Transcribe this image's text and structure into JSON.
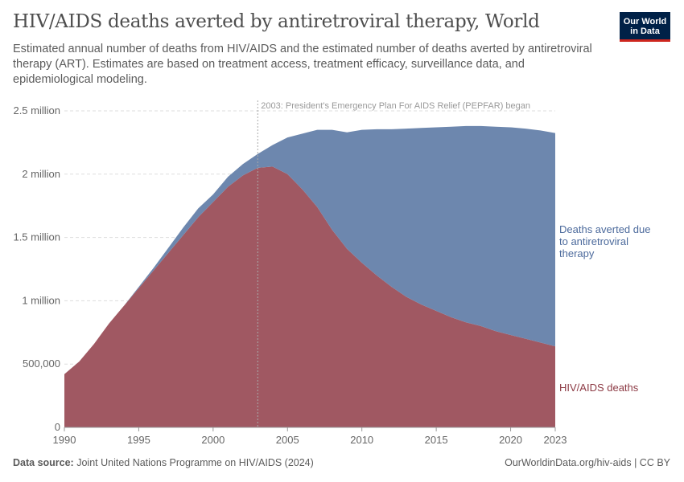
{
  "header": {
    "title": "HIV/AIDS deaths averted by antiretroviral therapy, World",
    "subtitle": "Estimated annual number of deaths from HIV/AIDS and the estimated number of deaths averted by antiretroviral therapy (ART). Estimates are based on treatment access, treatment efficacy, surveillance data, and epidemiological modeling.",
    "logo": "Our World in Data"
  },
  "footer": {
    "source_label": "Data source:",
    "source": "Joint United Nations Programme on HIV/AIDS (2024)",
    "url": "OurWorldinData.org/hiv-aids | CC BY"
  },
  "chart_data": {
    "type": "area",
    "stacked": true,
    "grid": true,
    "legend": "right (inline labels)",
    "title": "HIV/AIDS deaths averted by antiretroviral therapy, World",
    "xlim": [
      1990,
      2023
    ],
    "ylim": [
      0,
      2500000
    ],
    "x_ticks": [
      "1990",
      "1995",
      "2000",
      "2005",
      "2010",
      "2015",
      "2020",
      "2023"
    ],
    "y_ticks": [
      {
        "v": 0,
        "label": "0"
      },
      {
        "v": 500000,
        "label": "500,000"
      },
      {
        "v": 1000000,
        "label": "1 million"
      },
      {
        "v": 1500000,
        "label": "1.5 million"
      },
      {
        "v": 2000000,
        "label": "2 million"
      },
      {
        "v": 2500000,
        "label": "2.5 million"
      }
    ],
    "annotation": {
      "x": 2003,
      "text": "2003: President's Emergency Plan For AIDS Relief (PEPFAR) began"
    },
    "x": [
      1990,
      1991,
      1992,
      1993,
      1994,
      1995,
      1996,
      1997,
      1998,
      1999,
      2000,
      2001,
      2002,
      2003,
      2004,
      2005,
      2006,
      2007,
      2008,
      2009,
      2010,
      2011,
      2012,
      2013,
      2014,
      2015,
      2016,
      2017,
      2018,
      2019,
      2020,
      2021,
      2022,
      2023
    ],
    "series": [
      {
        "name": "HIV/AIDS deaths",
        "color": "#a05862",
        "values": [
          420000,
          520000,
          660000,
          820000,
          960000,
          1100000,
          1240000,
          1380000,
          1520000,
          1660000,
          1780000,
          1900000,
          1990000,
          2050000,
          2060000,
          2000000,
          1880000,
          1740000,
          1560000,
          1410000,
          1300000,
          1200000,
          1110000,
          1030000,
          970000,
          920000,
          870000,
          830000,
          800000,
          760000,
          730000,
          700000,
          670000,
          640000
        ]
      },
      {
        "name": "Deaths averted due to antiretroviral therapy",
        "color": "#6d87ae",
        "values": [
          0,
          0,
          0,
          0,
          0,
          10000,
          20000,
          40000,
          60000,
          70000,
          60000,
          80000,
          90000,
          110000,
          170000,
          290000,
          440000,
          610000,
          790000,
          920000,
          1050000,
          1155000,
          1245000,
          1330000,
          1395000,
          1450000,
          1505000,
          1550000,
          1580000,
          1615000,
          1640000,
          1660000,
          1675000,
          1685000
        ]
      }
    ]
  }
}
